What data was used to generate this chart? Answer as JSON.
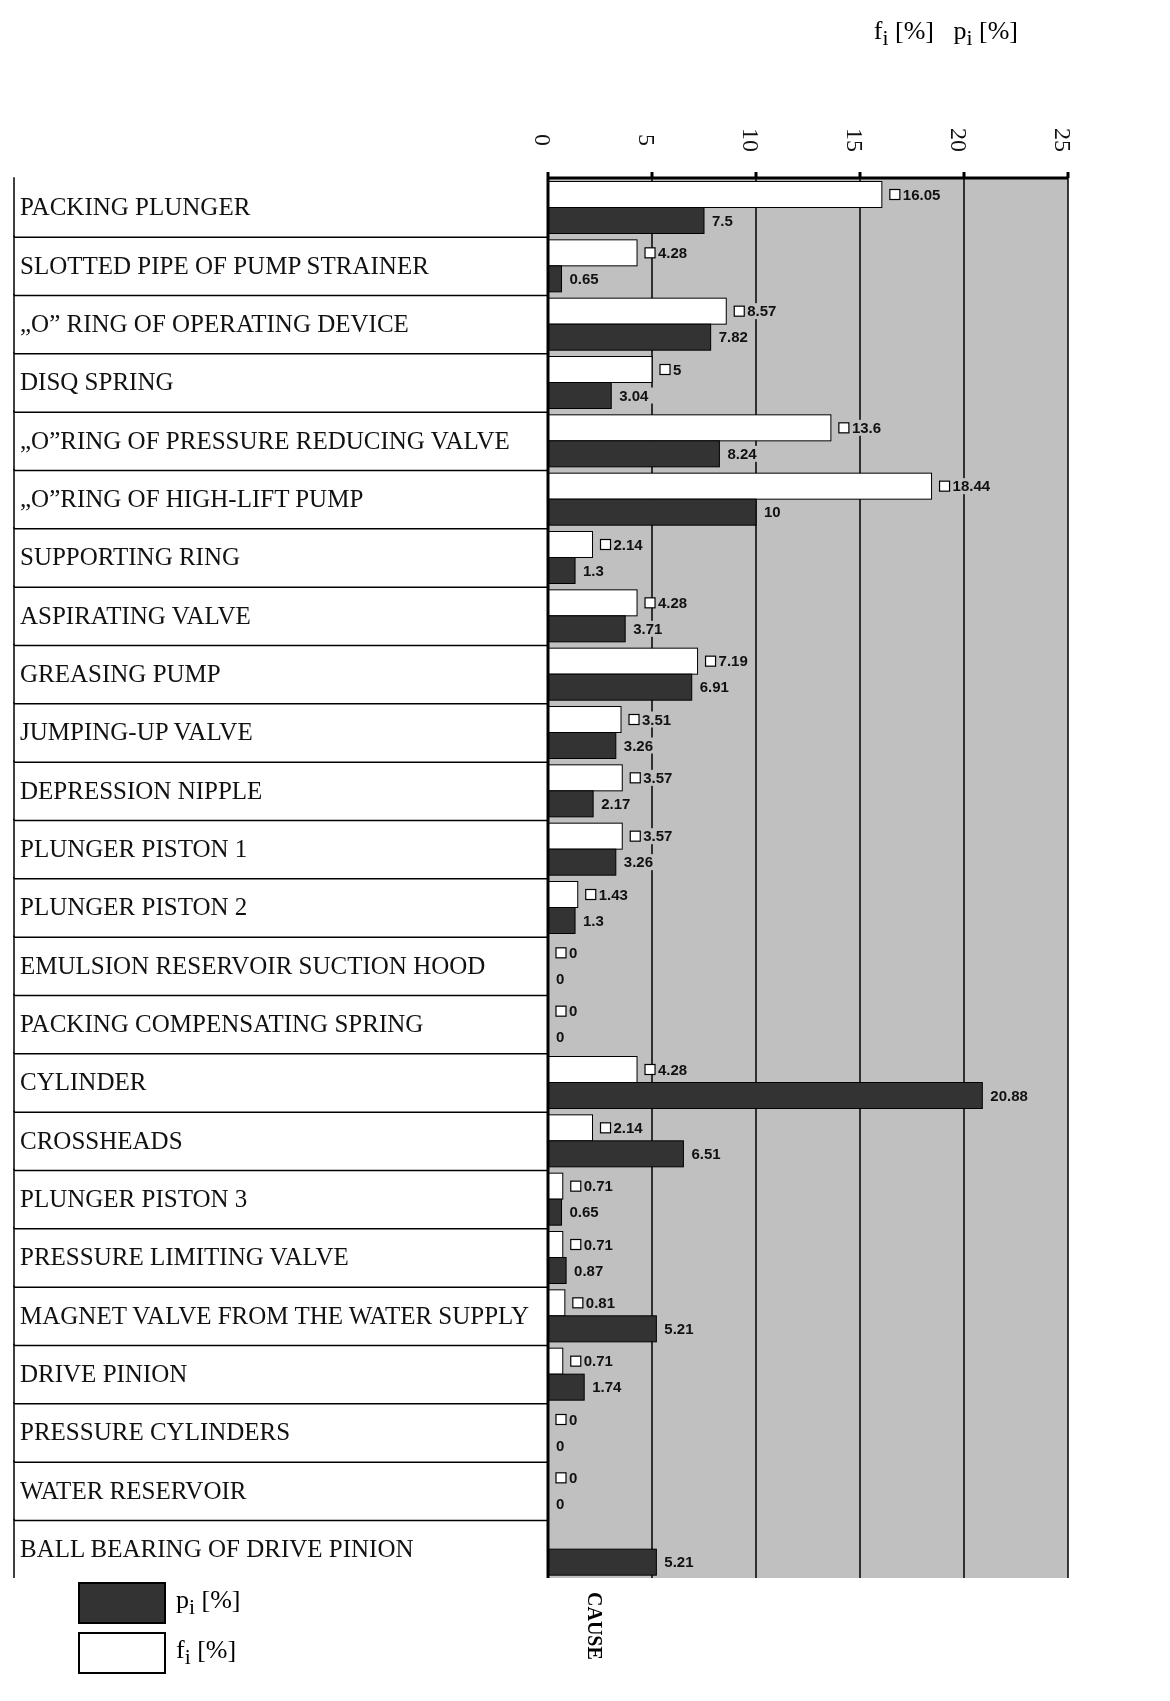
{
  "chart_data": {
    "type": "bar",
    "orientation": "horizontal",
    "xlabel": "f$_{i}$ [%]   p$_{i}$ [%]",
    "ylabel": "CAUSE",
    "categories": [
      "PACKING PLUNGER",
      "SLOTTED PIPE OF PUMP STRAINER",
      "„O” RING OF OPERATING DEVICE",
      "DISQ SPRING",
      "„O”RING OF PRESSURE REDUCING VALVE",
      "„O”RING OF HIGH-LIFT PUMP",
      "SUPPORTING RING",
      "ASPIRATING VALVE",
      "GREASING PUMP",
      "JUMPING-UP VALVE",
      "DEPRESSION NIPPLE",
      "PLUNGER PISTON 1",
      "PLUNGER PISTON 2",
      "EMULSION RESERVOIR SUCTION HOOD",
      "PACKING COMPENSATING SPRING",
      "CYLINDER",
      "CROSSHEADS",
      "PLUNGER PISTON 3",
      "PRESSURE LIMITING VALVE",
      "MAGNET VALVE FROM THE WATER SUPPLY",
      "DRIVE PINION",
      "PRESSURE CYLINDERS",
      "WATER RESERVOIR",
      "BALL BEARING OF DRIVE PINION"
    ],
    "series": [
      {
        "name": "f$_{i}$ [%]",
        "color": "#ffffff",
        "values": [
          16.05,
          4.28,
          8.57,
          5,
          13.6,
          18.44,
          2.14,
          4.28,
          7.19,
          3.51,
          3.57,
          3.57,
          1.43,
          0,
          0,
          4.28,
          2.14,
          0.71,
          0.71,
          0.81,
          0.71,
          0,
          0,
          null
        ]
      },
      {
        "name": "p$_{i}$ [%]",
        "color": "#333333",
        "values": [
          7.5,
          0.65,
          7.82,
          3.04,
          8.24,
          10,
          1.3,
          3.71,
          6.91,
          3.26,
          2.17,
          3.26,
          1.3,
          0,
          0,
          20.88,
          6.51,
          0.65,
          0.87,
          5.21,
          1.74,
          0,
          0,
          5.21
        ]
      }
    ],
    "xlim": [
      0,
      25
    ],
    "xticks": [
      0,
      5,
      10,
      15,
      20,
      25
    ],
    "grid": "x",
    "legend": "bottom left",
    "data_labels": true
  }
}
